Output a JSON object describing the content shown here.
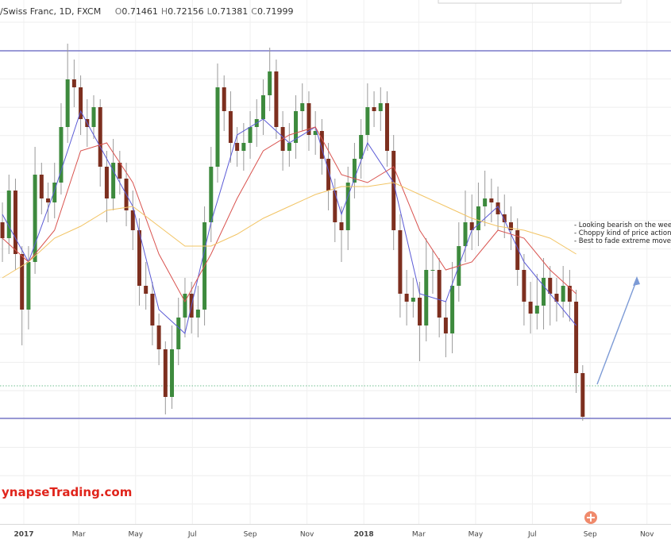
{
  "chart_data": {
    "type": "candlestick",
    "title": "/Swiss Franc, 1D, FXCM",
    "ohlc": [
      {
        "label": "O",
        "value": "0.71461"
      },
      {
        "label": "H",
        "value": "0.72156"
      },
      {
        "label": "L",
        "value": "0.71381"
      },
      {
        "label": "C",
        "value": "0.71999"
      }
    ],
    "watermark": "ynapseTrading.com",
    "annotation": [
      "- Looking bearish on the wee",
      "- Choppy kind of price action",
      "- Best to fade extreme move"
    ],
    "xlim": [
      -25.6,
      694.8
    ],
    "ylim": [
      0.652,
      0.718
    ],
    "xticks": [
      {
        "value": 0,
        "label": "2017"
      },
      {
        "value": 59,
        "label": "Mar"
      },
      {
        "value": 120,
        "label": "May"
      },
      {
        "value": 181,
        "label": "Jul"
      },
      {
        "value": 243,
        "label": "Sep"
      },
      {
        "value": 304,
        "label": "Nov"
      },
      {
        "value": 365,
        "label": "2018"
      },
      {
        "value": 424,
        "label": "Mar"
      },
      {
        "value": 485,
        "label": "May"
      },
      {
        "value": 546,
        "label": "Jul"
      },
      {
        "value": 608,
        "label": "Sep"
      },
      {
        "value": 669,
        "label": "Nov"
      }
    ],
    "up_color": "#3d8a3d",
    "down_color": "#7d2f1f",
    "wick_color": "#9a9a9a",
    "x": [
      -23,
      -16,
      -9,
      -2,
      5,
      12,
      19,
      26,
      33,
      40,
      47,
      54,
      61,
      68,
      75,
      82,
      89,
      96,
      103,
      110,
      117,
      124,
      131,
      138,
      145,
      152,
      159,
      166,
      173,
      180,
      187,
      194,
      201,
      208,
      215,
      222,
      229,
      236,
      243,
      250,
      257,
      264,
      271,
      278,
      285,
      292,
      299,
      306,
      313,
      320,
      327,
      334,
      341,
      348,
      355,
      362,
      369,
      376,
      383,
      390,
      397,
      404,
      411,
      418,
      425,
      432,
      439,
      446,
      453,
      460,
      467,
      474,
      481,
      488,
      495,
      502,
      509,
      516,
      523,
      530,
      537,
      544,
      551,
      558,
      565,
      572,
      579,
      586,
      593,
      600
    ],
    "open": [
      0.69,
      0.688,
      0.694,
      0.686,
      0.679,
      0.685,
      0.696,
      0.693,
      0.6925,
      0.695,
      0.702,
      0.708,
      0.707,
      0.703,
      0.702,
      0.7045,
      0.697,
      0.693,
      0.6975,
      0.6955,
      0.6915,
      0.689,
      0.682,
      0.681,
      0.677,
      0.674,
      0.668,
      0.674,
      0.678,
      0.681,
      0.678,
      0.679,
      0.69,
      0.697,
      0.707,
      0.704,
      0.7,
      0.699,
      0.7,
      0.702,
      0.703,
      0.706,
      0.709,
      0.702,
      0.699,
      0.7,
      0.704,
      0.705,
      0.701,
      0.7015,
      0.698,
      0.694,
      0.69,
      0.689,
      0.695,
      0.698,
      0.701,
      0.7045,
      0.704,
      0.705,
      0.699,
      0.689,
      0.681,
      0.68,
      0.6805,
      0.677,
      0.684,
      0.684,
      0.678,
      0.676,
      0.682,
      0.687,
      0.69,
      0.689,
      0.692,
      0.693,
      0.6925,
      0.691,
      0.69,
      0.689,
      0.684,
      0.68,
      0.6785,
      0.6795,
      0.683,
      0.681,
      0.68,
      0.682,
      0.68,
      0.671
    ],
    "high": [
      0.6925,
      0.696,
      0.6955,
      0.687,
      0.687,
      0.6995,
      0.6975,
      0.695,
      0.6975,
      0.705,
      0.7125,
      0.7105,
      0.7085,
      0.7055,
      0.706,
      0.7055,
      0.699,
      0.7005,
      0.699,
      0.6975,
      0.694,
      0.6905,
      0.685,
      0.6825,
      0.6785,
      0.675,
      0.677,
      0.6805,
      0.683,
      0.6825,
      0.682,
      0.692,
      0.6995,
      0.71,
      0.7085,
      0.7065,
      0.702,
      0.7025,
      0.704,
      0.7055,
      0.708,
      0.712,
      0.7105,
      0.704,
      0.7025,
      0.706,
      0.7075,
      0.7065,
      0.704,
      0.703,
      0.7,
      0.6955,
      0.692,
      0.697,
      0.7,
      0.703,
      0.7075,
      0.7065,
      0.707,
      0.7065,
      0.701,
      0.691,
      0.684,
      0.683,
      0.6825,
      0.688,
      0.6865,
      0.6855,
      0.68,
      0.685,
      0.69,
      0.694,
      0.6935,
      0.695,
      0.6965,
      0.6955,
      0.6945,
      0.6935,
      0.692,
      0.6905,
      0.686,
      0.6825,
      0.6835,
      0.6855,
      0.6845,
      0.683,
      0.6845,
      0.684,
      0.6815,
      0.672
    ],
    "low": [
      0.685,
      0.686,
      0.684,
      0.6745,
      0.6765,
      0.6835,
      0.691,
      0.69,
      0.6905,
      0.6935,
      0.7,
      0.7045,
      0.701,
      0.6995,
      0.7005,
      0.6945,
      0.69,
      0.6915,
      0.6935,
      0.6895,
      0.6865,
      0.6795,
      0.679,
      0.6745,
      0.672,
      0.6658,
      0.6665,
      0.672,
      0.6755,
      0.676,
      0.6755,
      0.677,
      0.6875,
      0.695,
      0.7015,
      0.6975,
      0.697,
      0.6965,
      0.698,
      0.6995,
      0.701,
      0.704,
      0.7005,
      0.6965,
      0.697,
      0.698,
      0.7015,
      0.699,
      0.6985,
      0.696,
      0.6915,
      0.6875,
      0.685,
      0.6865,
      0.693,
      0.6955,
      0.699,
      0.702,
      0.7015,
      0.697,
      0.6865,
      0.678,
      0.677,
      0.678,
      0.6725,
      0.675,
      0.681,
      0.6755,
      0.673,
      0.6735,
      0.68,
      0.685,
      0.6865,
      0.687,
      0.6895,
      0.69,
      0.689,
      0.688,
      0.6865,
      0.682,
      0.677,
      0.676,
      0.6765,
      0.6765,
      0.677,
      0.6775,
      0.678,
      0.6775,
      0.6685,
      0.665
    ],
    "close": [
      0.688,
      0.694,
      0.686,
      0.679,
      0.685,
      0.696,
      0.693,
      0.6925,
      0.695,
      0.702,
      0.708,
      0.707,
      0.703,
      0.702,
      0.7045,
      0.697,
      0.693,
      0.6975,
      0.6955,
      0.6915,
      0.689,
      0.682,
      0.681,
      0.677,
      0.674,
      0.668,
      0.674,
      0.678,
      0.681,
      0.678,
      0.679,
      0.69,
      0.697,
      0.707,
      0.704,
      0.7,
      0.699,
      0.7,
      0.702,
      0.703,
      0.706,
      0.709,
      0.702,
      0.699,
      0.7,
      0.704,
      0.705,
      0.701,
      0.7015,
      0.698,
      0.694,
      0.69,
      0.689,
      0.695,
      0.698,
      0.701,
      0.7045,
      0.704,
      0.705,
      0.699,
      0.689,
      0.681,
      0.68,
      0.6805,
      0.677,
      0.684,
      0.684,
      0.678,
      0.676,
      0.682,
      0.687,
      0.69,
      0.689,
      0.692,
      0.693,
      0.6925,
      0.691,
      0.69,
      0.689,
      0.684,
      0.68,
      0.6785,
      0.6795,
      0.683,
      0.681,
      0.68,
      0.682,
      0.68,
      0.671,
      0.6655
    ],
    "indicators": [
      {
        "color": "#5b5bd6",
        "x": [
          -23,
          5,
          33,
          61,
          89,
          117,
          145,
          173,
          201,
          229,
          257,
          285,
          313,
          341,
          369,
          397,
          425,
          453,
          481,
          509,
          537,
          565,
          593
        ],
        "values": [
          0.691,
          0.685,
          0.694,
          0.704,
          0.698,
          0.692,
          0.679,
          0.676,
          0.69,
          0.701,
          0.703,
          0.7,
          0.702,
          0.691,
          0.7,
          0.695,
          0.681,
          0.68,
          0.689,
          0.692,
          0.685,
          0.681,
          0.677
        ]
      },
      {
        "color": "#d9534f",
        "x": [
          -23,
          5,
          33,
          61,
          89,
          117,
          145,
          173,
          201,
          229,
          257,
          285,
          313,
          341,
          369,
          397,
          425,
          453,
          481,
          509,
          537,
          565,
          593
        ],
        "values": [
          0.688,
          0.685,
          0.689,
          0.699,
          0.7,
          0.695,
          0.686,
          0.68,
          0.686,
          0.693,
          0.699,
          0.701,
          0.702,
          0.696,
          0.695,
          0.697,
          0.689,
          0.684,
          0.685,
          0.689,
          0.688,
          0.684,
          0.681
        ]
      },
      {
        "color": "#f2c464",
        "x": [
          -23,
          5,
          33,
          61,
          89,
          117,
          145,
          173,
          201,
          229,
          257,
          285,
          313,
          341,
          369,
          397,
          425,
          453,
          481,
          509,
          537,
          565,
          593
        ],
        "values": [
          0.683,
          0.685,
          0.688,
          0.6895,
          0.6915,
          0.692,
          0.6895,
          0.687,
          0.687,
          0.6885,
          0.6905,
          0.692,
          0.6935,
          0.6945,
          0.6945,
          0.695,
          0.6935,
          0.692,
          0.6905,
          0.6895,
          0.689,
          0.688,
          0.686
        ]
      }
    ],
    "levels": [
      {
        "value": 0.7116,
        "color": "#3b3bb3",
        "style": "solid"
      },
      {
        "value": 0.6653,
        "color": "#3b3bb3",
        "style": "solid"
      },
      {
        "value": 0.6694,
        "color": "#6fbf8f",
        "style": "dotted"
      }
    ]
  }
}
